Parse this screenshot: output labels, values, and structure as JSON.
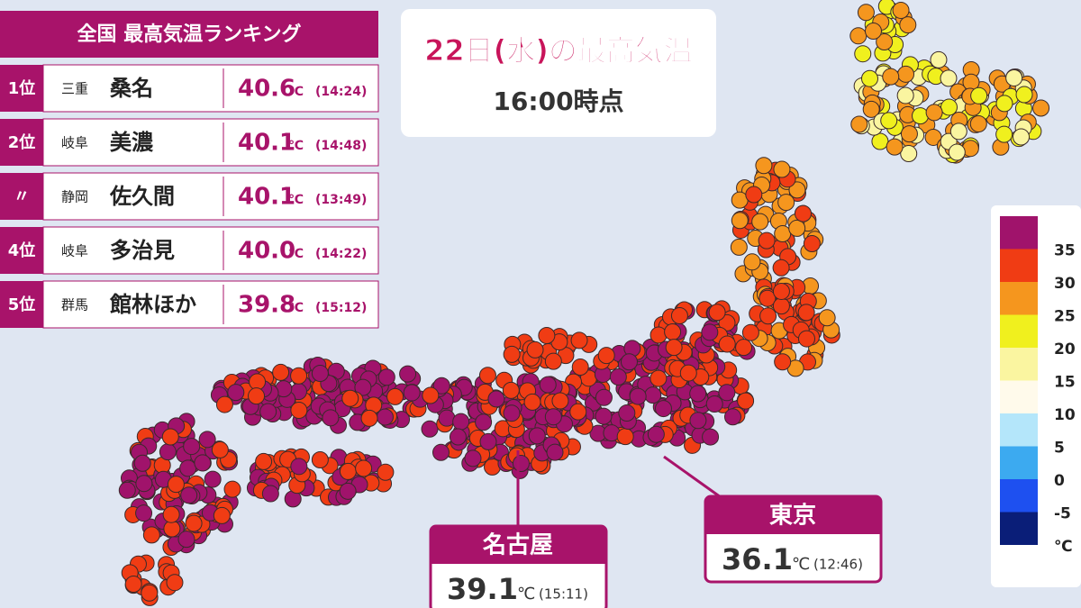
{
  "ranking": {
    "title": "全国 最高気温ランキング",
    "rows": [
      {
        "rank": "1位",
        "pref": "三重",
        "city": "桑名",
        "temp": "40.6",
        "unit": "℃",
        "time": "(14:24)"
      },
      {
        "rank": "2位",
        "pref": "岐阜",
        "city": "美濃",
        "temp": "40.1",
        "unit": "℃",
        "time": "(14:48)"
      },
      {
        "rank": "〃",
        "pref": "静岡",
        "city": "佐久間",
        "temp": "40.1",
        "unit": "℃",
        "time": "(13:49)"
      },
      {
        "rank": "4位",
        "pref": "岐阜",
        "city": "多治見",
        "temp": "40.0",
        "unit": "℃",
        "time": "(14:22)"
      },
      {
        "rank": "5位",
        "pref": "群馬",
        "city": "館林ほか",
        "temp": "39.8",
        "unit": "℃",
        "time": "(15:12)"
      }
    ]
  },
  "header": {
    "title": "22日(水)の最高気温",
    "subtitle": "16:00時点"
  },
  "callouts": [
    {
      "city": "名古屋",
      "temp": "39.1",
      "unit": "℃",
      "time": "(15:11)"
    },
    {
      "city": "東京",
      "temp": "36.1",
      "unit": "℃",
      "time": "(12:46)"
    }
  ],
  "legend": {
    "labels": [
      "35",
      "30",
      "25",
      "20",
      "15",
      "10",
      "5",
      "0",
      "-5",
      "℃"
    ],
    "colors": [
      "#a0136b",
      "#f03c14",
      "#f5961e",
      "#f0f01e",
      "#faf5a0",
      "#fffaeb",
      "#b4e6fa",
      "#3caaf0",
      "#1e50f0",
      "#0a1e78"
    ]
  }
}
